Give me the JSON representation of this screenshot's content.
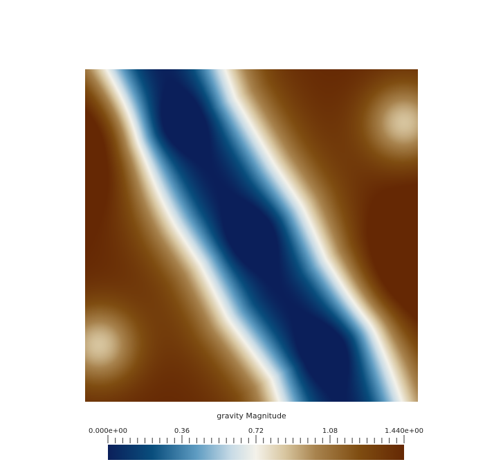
{
  "chart_data": {
    "type": "heatmap",
    "title": "",
    "field_name": "gravity Magnitude",
    "colormap": {
      "name": "diverging blue-white-brown",
      "stops": [
        {
          "value": 0.0,
          "color": "#0b1f5a"
        },
        {
          "value": 0.216,
          "color": "#094e7d"
        },
        {
          "value": 0.432,
          "color": "#5f9cc2"
        },
        {
          "value": 0.6,
          "color": "#c8dbe6"
        },
        {
          "value": 0.72,
          "color": "#f4f2ea"
        },
        {
          "value": 0.86,
          "color": "#d8c6a0"
        },
        {
          "value": 1.01,
          "color": "#a8834e"
        },
        {
          "value": 1.22,
          "color": "#7f4d11"
        },
        {
          "value": 1.44,
          "color": "#652804"
        }
      ]
    },
    "range": [
      0.0,
      1.44
    ],
    "colorbar": {
      "label": "gravity Magnitude",
      "major_ticks": [
        {
          "value": 0.0,
          "label": "0.000e+00"
        },
        {
          "value": 0.36,
          "label": "0.36"
        },
        {
          "value": 0.72,
          "label": "0.72"
        },
        {
          "value": 1.08,
          "label": "1.08"
        },
        {
          "value": 1.44,
          "label": "1.440e+00"
        }
      ],
      "minor_tick_count": 41
    },
    "field_features": [
      {
        "kind": "minimum",
        "x": 0.29,
        "y": 0.84,
        "value": 0.0
      },
      {
        "kind": "minimum",
        "x": 0.5,
        "y": 0.5,
        "value": 0.0
      },
      {
        "kind": "minimum",
        "x": 0.72,
        "y": 0.15,
        "value": 0.0
      },
      {
        "kind": "maximum",
        "x": 0.0,
        "y": 0.77,
        "value": 1.44
      },
      {
        "kind": "maximum",
        "x": 1.0,
        "y": 0.4,
        "value": 1.44
      },
      {
        "kind": "local_low",
        "x": 0.96,
        "y": 0.84,
        "value": 0.65
      },
      {
        "kind": "local_low",
        "x": 0.04,
        "y": 0.17,
        "value": 0.65
      }
    ],
    "x_domain": [
      0,
      1
    ],
    "y_domain": [
      0,
      1
    ]
  }
}
